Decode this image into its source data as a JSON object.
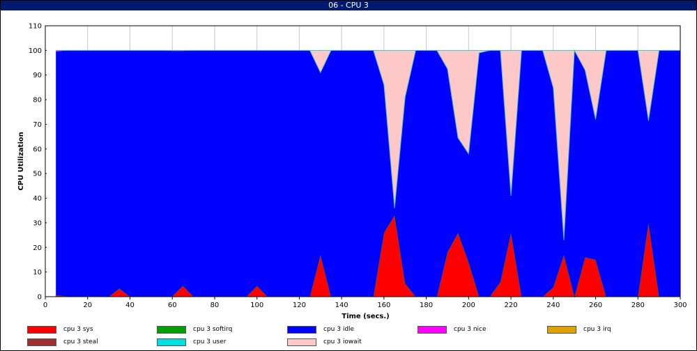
{
  "window": {
    "title": "06 - CPU 3"
  },
  "chart_data": {
    "type": "area",
    "stacked": true,
    "xlabel": "Time (secs.)",
    "ylabel": "CPU Utilization",
    "xlim": [
      0,
      300
    ],
    "ylim": [
      0,
      110
    ],
    "xticks": [
      0,
      20,
      40,
      60,
      80,
      100,
      120,
      140,
      160,
      180,
      200,
      220,
      240,
      260,
      280,
      300
    ],
    "yticks": [
      0,
      10,
      20,
      30,
      40,
      50,
      60,
      70,
      80,
      90,
      100,
      110
    ],
    "grid": true,
    "legend_position": "bottom",
    "x": [
      5,
      10,
      15,
      20,
      25,
      30,
      35,
      40,
      45,
      50,
      55,
      60,
      65,
      70,
      75,
      80,
      85,
      90,
      95,
      100,
      105,
      110,
      115,
      120,
      125,
      130,
      135,
      140,
      145,
      150,
      155,
      160,
      165,
      170,
      175,
      180,
      185,
      190,
      195,
      200,
      205,
      210,
      215,
      220,
      225,
      230,
      235,
      240,
      245,
      250,
      255,
      260,
      265,
      270,
      275,
      280,
      285,
      290,
      295,
      300
    ],
    "series": [
      {
        "name": "cpu 3 sys",
        "color": "#ff0000",
        "values": [
          0.6,
          0.2,
          0,
          0.2,
          0.2,
          0,
          3.3,
          0,
          0,
          0,
          0,
          0.2,
          4.4,
          0,
          0,
          0,
          0,
          0,
          0,
          4.4,
          0,
          0,
          0,
          0,
          0,
          17,
          0,
          0,
          0,
          0,
          0,
          26,
          33,
          5.5,
          0,
          0,
          0,
          18,
          26,
          14,
          0,
          0,
          6,
          26,
          0,
          0,
          0,
          3.8,
          17,
          0,
          16,
          15,
          0,
          0,
          0,
          0,
          30,
          0,
          0,
          0
        ]
      },
      {
        "name": "cpu 3 softirq",
        "color": "#00a000",
        "values": [
          0,
          0,
          0,
          0,
          0,
          0,
          0,
          0,
          0,
          0,
          0,
          0,
          0,
          0,
          0,
          0,
          0,
          0,
          0,
          0,
          0,
          0,
          0,
          0,
          0,
          0,
          0,
          0,
          0,
          0,
          0,
          0,
          0,
          0,
          0,
          0,
          0,
          0,
          0,
          0,
          0,
          0,
          0,
          0,
          0,
          0,
          0,
          0,
          0,
          0,
          0,
          0,
          0,
          0,
          0,
          0,
          0,
          0,
          0,
          0
        ]
      },
      {
        "name": "cpu 3 idle",
        "color": "#0000ff",
        "values": [
          98.9,
          99.8,
          100,
          99.8,
          99.8,
          100,
          96.7,
          100,
          100,
          100,
          100,
          99.6,
          95.4,
          100,
          100,
          100,
          100,
          100,
          100,
          95.6,
          100,
          100,
          100,
          100,
          100,
          74,
          100,
          100,
          100,
          100,
          100,
          60,
          3,
          75.5,
          100,
          100,
          100,
          74.5,
          38.5,
          44,
          99,
          100,
          94,
          15,
          100,
          100,
          100,
          81,
          6,
          100,
          76,
          57,
          100,
          100,
          100,
          100,
          41.5,
          100,
          100,
          100
        ]
      },
      {
        "name": "cpu 3 nice",
        "color": "#ff00ff",
        "values": [
          0.5,
          0,
          0,
          0,
          0,
          0,
          0,
          0,
          0,
          0,
          0,
          0.2,
          0.2,
          0,
          0,
          0,
          0,
          0,
          0,
          0,
          0,
          0,
          0,
          0,
          0,
          0,
          0,
          0,
          0,
          0,
          0,
          0,
          0,
          0,
          0,
          0,
          0,
          0,
          0,
          0,
          0,
          0,
          0,
          0,
          0,
          0,
          0,
          0,
          0,
          0,
          0,
          0,
          0,
          0,
          0,
          0,
          0,
          0,
          0,
          0
        ]
      },
      {
        "name": "cpu 3 irq",
        "color": "#e0a000",
        "values": [
          0,
          0,
          0,
          0,
          0,
          0,
          0,
          0,
          0,
          0,
          0,
          0,
          0,
          0,
          0,
          0,
          0,
          0,
          0,
          0,
          0,
          0,
          0,
          0,
          0,
          0,
          0,
          0,
          0,
          0,
          0,
          0,
          0,
          0,
          0,
          0,
          0,
          0,
          0,
          0,
          0,
          0,
          0,
          0,
          0,
          0,
          0,
          0,
          0,
          0,
          0,
          0,
          0,
          0,
          0,
          0,
          0,
          0,
          0,
          0
        ]
      },
      {
        "name": "cpu 3 steal",
        "color": "#a03030",
        "values": [
          0,
          0,
          0,
          0,
          0,
          0,
          0,
          0,
          0,
          0,
          0,
          0,
          0,
          0,
          0,
          0,
          0,
          0,
          0,
          0,
          0,
          0,
          0,
          0,
          0,
          0,
          0,
          0,
          0,
          0,
          0,
          0,
          0,
          0,
          0,
          0,
          0,
          0,
          0,
          0,
          0,
          0,
          0,
          0,
          0,
          0,
          0,
          0,
          0,
          0,
          0,
          0,
          0,
          0,
          0,
          0,
          0,
          0,
          0,
          0
        ]
      },
      {
        "name": "cpu 3 user",
        "color": "#00e0e0",
        "values": [
          0,
          0,
          0,
          0,
          0,
          0,
          0,
          0,
          0,
          0,
          0,
          0,
          0,
          0,
          0,
          0,
          0,
          0,
          0,
          0,
          0,
          0,
          0,
          0,
          0,
          0,
          0,
          0,
          0,
          0,
          0,
          0,
          0,
          0,
          0,
          0,
          0,
          0,
          0,
          0,
          0,
          0,
          0,
          0,
          0,
          0,
          0,
          0,
          0,
          0,
          0,
          0,
          0,
          0,
          0,
          0,
          0,
          0,
          0,
          0
        ]
      },
      {
        "name": "cpu 3 iowait",
        "color": "#ffc8c8",
        "values": [
          0,
          0,
          0,
          0,
          0,
          0,
          0,
          0,
          0,
          0,
          0,
          0,
          0,
          0,
          0,
          0,
          0,
          0,
          0,
          0,
          0,
          0,
          0,
          0,
          0,
          9,
          0,
          0,
          0,
          0,
          0,
          14,
          64,
          19,
          0,
          0,
          0,
          7.5,
          35.5,
          42,
          1,
          0,
          0,
          59,
          0,
          0,
          0,
          15.2,
          77,
          0,
          8,
          28,
          0,
          0,
          0,
          0,
          28.5,
          0,
          0,
          0
        ]
      }
    ]
  }
}
